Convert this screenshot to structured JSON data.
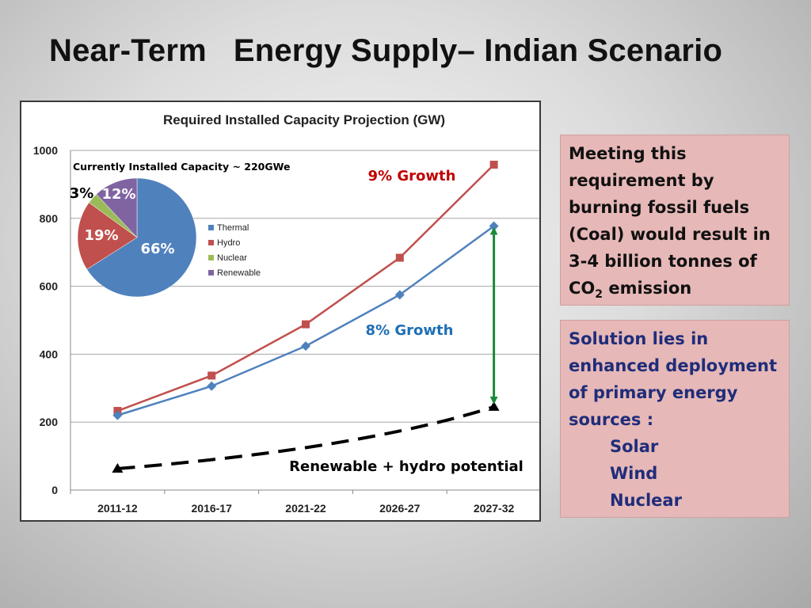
{
  "slide": {
    "title": "Near-Term   Energy Supply– Indian Scenario"
  },
  "co2_box": {
    "line1": "Meeting this",
    "line2": "requirement by",
    "line3": "burning fossil fuels",
    "line4": "(Coal) would result  in",
    "line5": "3-4 billion tonnes of",
    "co2_prefix": "CO",
    "co2_subscript": "2",
    "co2_suffix": " emission"
  },
  "solution_box": {
    "line1": "Solution lies in",
    "line2": "enhanced deployment",
    "line3": "of primary energy",
    "line4": "sources :",
    "options": [
      "Solar",
      "Wind",
      "Nuclear"
    ]
  },
  "chart_data": [
    {
      "type": "line",
      "title": "Required Installed Capacity Projection (GW)",
      "categories": [
        "2011-12",
        "2016-17",
        "2021-22",
        "2026-27",
        "2027-32"
      ],
      "ylim": [
        0,
        1000
      ],
      "yticks": [
        0,
        200,
        400,
        600,
        800,
        1000
      ],
      "grid": true,
      "series": [
        {
          "name": "9% Growth",
          "color": "#c0504d",
          "marker": "square",
          "values": [
            233,
            337,
            488,
            684,
            958
          ]
        },
        {
          "name": "8% Growth",
          "color": "#4f81bd",
          "marker": "diamond",
          "values": [
            220,
            306,
            424,
            575,
            777
          ]
        },
        {
          "name": "Renewable + hydro potential",
          "color": "#000000",
          "marker": "triangle",
          "dashed": true,
          "values": [
            63,
            null,
            null,
            null,
            245
          ]
        }
      ],
      "annotations": [
        {
          "text": "9% Growth",
          "color": "#c00000"
        },
        {
          "text": "8% Growth",
          "color": "#1f6fb4"
        },
        {
          "text": "Renewable + hydro potential",
          "color": "#000000"
        }
      ],
      "gap_arrow": {
        "category": "2027-32",
        "from": 777,
        "to": 245,
        "color": "#1a8a3a"
      }
    },
    {
      "type": "pie",
      "title": "Currently Installed Capacity ~ 220GWe",
      "legend_position": "right",
      "slices": [
        {
          "label": "Thermal",
          "value": 66,
          "color": "#4f81bd",
          "text": "66%"
        },
        {
          "label": "Hydro",
          "value": 19,
          "color": "#c0504d",
          "text": "19%"
        },
        {
          "label": "Nuclear",
          "value": 3,
          "color": "#9bbb59",
          "text": "3%"
        },
        {
          "label": "Renewable",
          "value": 12,
          "color": "#8064a2",
          "text": "12%"
        }
      ]
    }
  ]
}
